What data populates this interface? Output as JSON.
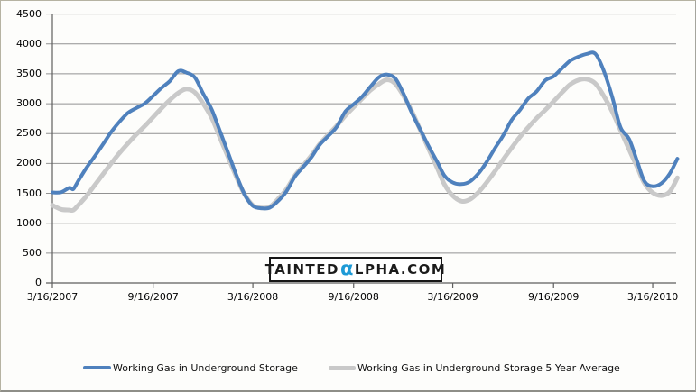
{
  "window": {
    "background": "#fdfdfb",
    "border_color": "#b6b3a2"
  },
  "watermark": {
    "prefix": "TAINTED",
    "alpha": "α",
    "suffix": "LPHA.COM",
    "alpha_color": "#1e9ad6",
    "text_color": "#1b1b1b"
  },
  "chart_data": {
    "type": "line",
    "title": "",
    "grid": "horizontal",
    "legend_position": "bottom",
    "ylim": [
      0,
      4500
    ],
    "y_tick_step": 500,
    "y_tick_labels": [
      "0",
      "500",
      "1000",
      "1500",
      "2000",
      "2500",
      "3000",
      "3500",
      "4000",
      "4500"
    ],
    "x_tick_labels": [
      "3/16/2007",
      "9/16/2007",
      "3/16/2008",
      "9/16/2008",
      "3/16/2009",
      "9/16/2009",
      "3/16/2010"
    ],
    "x_tick_dates": [
      "2007-03-16",
      "2007-09-16",
      "2008-03-16",
      "2008-09-16",
      "2009-03-16",
      "2009-09-16",
      "2010-03-16"
    ],
    "axis_color": "#5e5e5e",
    "grid_color": "#929292",
    "x": [
      "2007-03-16",
      "2007-04-01",
      "2007-04-16",
      "2007-04-23",
      "2007-05-01",
      "2007-05-16",
      "2007-06-01",
      "2007-06-16",
      "2007-07-01",
      "2007-07-16",
      "2007-08-01",
      "2007-08-16",
      "2007-09-01",
      "2007-09-16",
      "2007-10-01",
      "2007-10-16",
      "2007-11-01",
      "2007-11-16",
      "2007-12-01",
      "2007-12-16",
      "2008-01-01",
      "2008-01-16",
      "2008-02-01",
      "2008-02-16",
      "2008-03-01",
      "2008-03-16",
      "2008-04-01",
      "2008-04-16",
      "2008-05-01",
      "2008-05-16",
      "2008-06-01",
      "2008-06-16",
      "2008-07-01",
      "2008-07-16",
      "2008-08-01",
      "2008-08-16",
      "2008-09-01",
      "2008-09-16",
      "2008-10-01",
      "2008-10-16",
      "2008-11-01",
      "2008-11-16",
      "2008-12-01",
      "2008-12-16",
      "2009-01-01",
      "2009-01-16",
      "2009-02-01",
      "2009-02-16",
      "2009-03-01",
      "2009-03-16",
      "2009-04-01",
      "2009-04-16",
      "2009-05-01",
      "2009-05-16",
      "2009-06-01",
      "2009-06-16",
      "2009-07-01",
      "2009-07-16",
      "2009-08-01",
      "2009-08-16",
      "2009-09-01",
      "2009-09-16",
      "2009-10-01",
      "2009-10-16",
      "2009-11-01",
      "2009-11-16",
      "2009-12-01",
      "2009-12-16",
      "2010-01-01",
      "2010-01-16",
      "2010-02-01",
      "2010-02-16",
      "2010-03-01",
      "2010-03-16",
      "2010-04-01",
      "2010-04-16",
      "2010-04-30"
    ],
    "series": [
      {
        "name": "Working Gas in Underground Storage",
        "color": "#4f81bd",
        "stroke_width": 4,
        "values": [
          1516,
          1518,
          1592,
          1570,
          1687,
          1909,
          2114,
          2315,
          2521,
          2692,
          2845,
          2926,
          3005,
          3132,
          3263,
          3375,
          3545,
          3519,
          3440,
          3173,
          2900,
          2540,
          2150,
          1780,
          1480,
          1290,
          1250,
          1260,
          1371,
          1529,
          1782,
          1943,
          2104,
          2312,
          2461,
          2610,
          2870,
          2990,
          3113,
          3277,
          3441,
          3488,
          3422,
          3167,
          2830,
          2560,
          2270,
          2020,
          1793,
          1681,
          1654,
          1695,
          1823,
          2013,
          2255,
          2467,
          2721,
          2886,
          3089,
          3204,
          3392,
          3458,
          3589,
          3716,
          3788,
          3833,
          3837,
          3566,
          3117,
          2607,
          2406,
          2025,
          1700,
          1618,
          1669,
          1829,
          2080
        ]
      },
      {
        "name": "Working Gas in Underground Storage 5 Year Average",
        "color": "#c9c9c9",
        "stroke_width": 5,
        "values": [
          1300,
          1232,
          1220,
          1218,
          1288,
          1440,
          1632,
          1815,
          1997,
          2168,
          2335,
          2482,
          2627,
          2775,
          2921,
          3059,
          3181,
          3245,
          3189,
          3005,
          2760,
          2430,
          2080,
          1750,
          1480,
          1300,
          1255,
          1275,
          1405,
          1565,
          1800,
          1965,
          2136,
          2325,
          2485,
          2630,
          2800,
          2940,
          3080,
          3220,
          3330,
          3400,
          3335,
          3130,
          2860,
          2550,
          2220,
          1915,
          1645,
          1460,
          1368,
          1396,
          1509,
          1673,
          1870,
          2065,
          2255,
          2437,
          2608,
          2756,
          2896,
          3038,
          3184,
          3319,
          3398,
          3410,
          3340,
          3140,
          2870,
          2560,
          2230,
          1930,
          1665,
          1510,
          1462,
          1528,
          1760
        ]
      }
    ]
  }
}
